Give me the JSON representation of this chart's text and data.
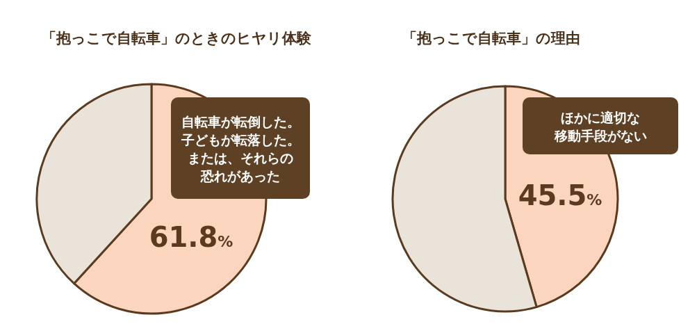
{
  "chart_data": [
    {
      "type": "pie",
      "title": "「抱っこで自転車」のときのヒヤリ体験",
      "categories": [
        "自転車が転倒した。子どもが転落した。または、それらの恐れがあった",
        null
      ],
      "values": [
        61.8,
        38.2
      ],
      "colors": [
        "#fcd5bf",
        "#e9e3da"
      ],
      "value_labels": [
        "61.8%",
        null
      ]
    },
    {
      "type": "pie",
      "title": "「抱っこで自転車」の理由",
      "categories": [
        "ほかに適切な移動手段がない",
        null
      ],
      "values": [
        45.5,
        54.5
      ],
      "colors": [
        "#fcd5bf",
        "#e9e3da"
      ],
      "value_labels": [
        "45.5%",
        null
      ]
    }
  ]
}
